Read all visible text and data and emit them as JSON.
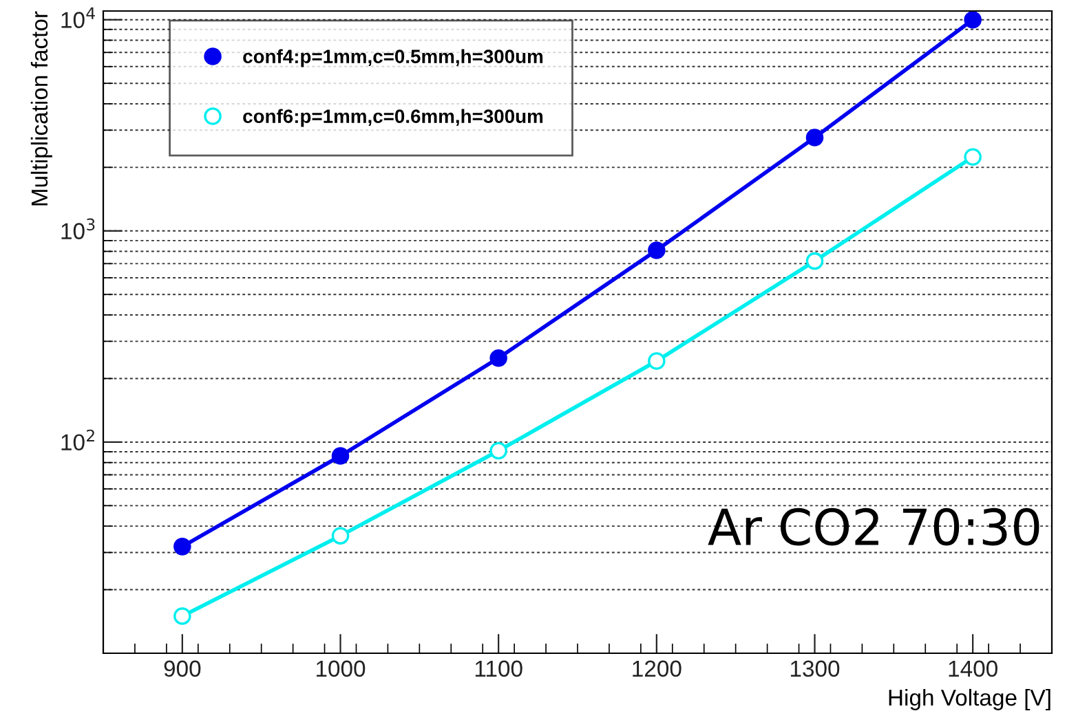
{
  "chart_data": {
    "type": "line",
    "xlabel": "High Voltage [V]",
    "ylabel": "Multiplication factor",
    "x": [
      900,
      1000,
      1100,
      1200,
      1300,
      1400
    ],
    "series": [
      {
        "name": "conf4:p=1mm,c=0.5mm,h=300um",
        "color": "#0000ee",
        "values": [
          32,
          86,
          250,
          810,
          2770,
          10000
        ]
      },
      {
        "name": "conf6:p=1mm,c=0.6mm,h=300um",
        "color": "#00eeee",
        "values": [
          15,
          36,
          91,
          242,
          720,
          2240
        ]
      }
    ],
    "xlim": [
      850,
      1450
    ],
    "xticks": [
      900,
      1000,
      1100,
      1200,
      1300,
      1400
    ],
    "ylim": [
      10,
      11000
    ],
    "log": true,
    "yticks": [
      {
        "value": 100,
        "label": "10$^{2}$"
      },
      {
        "value": 1000,
        "label": "10$^{3}$"
      },
      {
        "value": 10000,
        "label": "10$^{4}$"
      }
    ],
    "grid": "y",
    "legend": "top left",
    "marker": "circle",
    "line_style": "solid",
    "annotations": [
      "Ar CO2 70:30"
    ]
  }
}
